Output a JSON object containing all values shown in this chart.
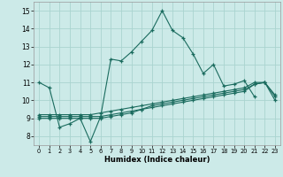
{
  "xlabel": "Humidex (Indice chaleur)",
  "bg_color": "#cceae8",
  "grid_color": "#aad4d0",
  "line_color": "#1a6b5e",
  "xlim": [
    -0.5,
    23.5
  ],
  "ylim": [
    7.5,
    15.5
  ],
  "xticks": [
    0,
    1,
    2,
    3,
    4,
    5,
    6,
    7,
    8,
    9,
    10,
    11,
    12,
    13,
    14,
    15,
    16,
    17,
    18,
    19,
    20,
    21,
    22,
    23
  ],
  "yticks": [
    8,
    9,
    10,
    11,
    12,
    13,
    14,
    15
  ],
  "line1_x": [
    0,
    1,
    2,
    3,
    4,
    5,
    6,
    7,
    8,
    9,
    10,
    11,
    12,
    13,
    14,
    15,
    16,
    17,
    18,
    19,
    20,
    21
  ],
  "line1_y": [
    11.0,
    10.7,
    8.5,
    8.7,
    9.0,
    7.7,
    9.1,
    12.3,
    12.2,
    12.7,
    13.3,
    13.9,
    15.0,
    13.9,
    13.5,
    12.6,
    11.5,
    12.0,
    10.8,
    10.9,
    11.1,
    10.2
  ],
  "line2_x": [
    0,
    1,
    2,
    3,
    4,
    5,
    6,
    7,
    8,
    9,
    10,
    11,
    12,
    13,
    14,
    15,
    16,
    17,
    18,
    19,
    20,
    21,
    22,
    23
  ],
  "line2_y": [
    9.0,
    9.0,
    9.0,
    9.0,
    9.0,
    9.0,
    9.0,
    9.1,
    9.2,
    9.3,
    9.5,
    9.6,
    9.7,
    9.8,
    9.9,
    10.0,
    10.1,
    10.2,
    10.3,
    10.4,
    10.5,
    10.9,
    11.0,
    10.0
  ],
  "line3_x": [
    0,
    1,
    2,
    3,
    4,
    5,
    6,
    7,
    8,
    9,
    10,
    11,
    12,
    13,
    14,
    15,
    16,
    17,
    18,
    19,
    20,
    21,
    22,
    23
  ],
  "line3_y": [
    9.1,
    9.1,
    9.1,
    9.1,
    9.1,
    9.1,
    9.1,
    9.2,
    9.3,
    9.4,
    9.5,
    9.7,
    9.8,
    9.9,
    10.0,
    10.1,
    10.2,
    10.3,
    10.4,
    10.5,
    10.6,
    10.9,
    11.0,
    10.2
  ],
  "line4_x": [
    0,
    1,
    2,
    3,
    4,
    5,
    6,
    7,
    8,
    9,
    10,
    11,
    12,
    13,
    14,
    15,
    16,
    17,
    18,
    19,
    20,
    21,
    22,
    23
  ],
  "line4_y": [
    9.2,
    9.2,
    9.2,
    9.2,
    9.2,
    9.2,
    9.3,
    9.4,
    9.5,
    9.6,
    9.7,
    9.8,
    9.9,
    10.0,
    10.1,
    10.2,
    10.3,
    10.4,
    10.5,
    10.6,
    10.7,
    11.0,
    11.0,
    10.3
  ]
}
